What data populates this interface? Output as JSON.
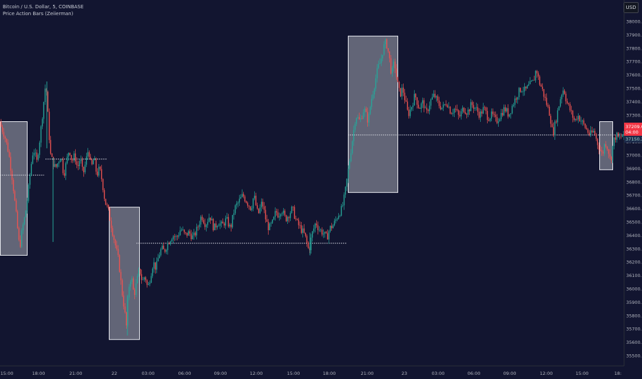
{
  "header": {
    "symbol_line": "Bitcoin / U.S. Dollar, 5, COINBASE",
    "indicator_line": "Price Action Bars (Zeiierman)",
    "currency_button": "USD"
  },
  "price_badges": {
    "last_price": "37209.02",
    "countdown": "04:00",
    "line_price": "37150.22"
  },
  "colors": {
    "background": "#121530",
    "bull": "#26a69a",
    "bear": "#ef5350",
    "box_fill": "#d1d4dc",
    "last_badge": "#f23645"
  },
  "chart_data": {
    "type": "candlestick",
    "title": "Bitcoin / U.S. Dollar, 5, COINBASE",
    "y_range": [
      35450,
      38100
    ],
    "y_ticks": [
      35500,
      35600,
      35700,
      35800,
      35900,
      36000,
      36100,
      36200,
      36300,
      36400,
      36500,
      36600,
      36700,
      36800,
      36900,
      37000,
      37100,
      37200,
      37300,
      37400,
      37500,
      37600,
      37700,
      37800,
      37900,
      38000
    ],
    "x_ticks": [
      "15:00",
      "18:00",
      "21:00",
      "22",
      "03:00",
      "06:00",
      "09:00",
      "12:00",
      "15:00",
      "18:00",
      "21:00",
      "23",
      "03:00",
      "06:00",
      "09:00",
      "12:00",
      "15:00",
      "18:"
    ],
    "price_path": [
      [
        0,
        37250
      ],
      [
        8,
        37150
      ],
      [
        14,
        37020
      ],
      [
        20,
        36800
      ],
      [
        25,
        36550
      ],
      [
        30,
        36300
      ],
      [
        34,
        36450
      ],
      [
        38,
        36550
      ],
      [
        42,
        36700
      ],
      [
        46,
        36900
      ],
      [
        50,
        37050
      ],
      [
        55,
        36950
      ],
      [
        60,
        37150
      ],
      [
        63,
        37300
      ],
      [
        66,
        37450
      ],
      [
        68,
        37550
      ],
      [
        70,
        37400
      ],
      [
        72,
        37200
      ],
      [
        75,
        37000
      ],
      [
        78,
        36950
      ],
      [
        82,
        36900
      ],
      [
        86,
        36950
      ],
      [
        90,
        37000
      ],
      [
        94,
        36850
      ],
      [
        98,
        36950
      ],
      [
        102,
        37050
      ],
      [
        106,
        36950
      ],
      [
        110,
        37000
      ],
      [
        114,
        36900
      ],
      [
        118,
        36980
      ],
      [
        122,
        36850
      ],
      [
        126,
        36950
      ],
      [
        130,
        37050
      ],
      [
        134,
        36900
      ],
      [
        138,
        36980
      ],
      [
        142,
        36850
      ],
      [
        146,
        36900
      ],
      [
        150,
        36800
      ],
      [
        154,
        36650
      ],
      [
        158,
        36600
      ],
      [
        162,
        36500
      ],
      [
        166,
        36400
      ],
      [
        170,
        36300
      ],
      [
        174,
        36200
      ],
      [
        178,
        36000
      ],
      [
        182,
        35850
      ],
      [
        185,
        35720
      ],
      [
        188,
        36000
      ],
      [
        192,
        36100
      ],
      [
        196,
        35950
      ],
      [
        200,
        36050
      ],
      [
        204,
        36150
      ],
      [
        208,
        36050
      ],
      [
        212,
        36100
      ],
      [
        216,
        36000
      ],
      [
        220,
        36100
      ],
      [
        224,
        36200
      ],
      [
        228,
        36150
      ],
      [
        232,
        36250
      ],
      [
        236,
        36300
      ],
      [
        240,
        36280
      ],
      [
        246,
        36350
      ],
      [
        252,
        36400
      ],
      [
        258,
        36380
      ],
      [
        264,
        36450
      ],
      [
        270,
        36400
      ],
      [
        276,
        36420
      ],
      [
        282,
        36380
      ],
      [
        288,
        36450
      ],
      [
        294,
        36550
      ],
      [
        300,
        36480
      ],
      [
        306,
        36550
      ],
      [
        312,
        36450
      ],
      [
        318,
        36500
      ],
      [
        324,
        36470
      ],
      [
        330,
        36520
      ],
      [
        336,
        36450
      ],
      [
        342,
        36600
      ],
      [
        348,
        36650
      ],
      [
        354,
        36700
      ],
      [
        360,
        36650
      ],
      [
        366,
        36600
      ],
      [
        370,
        36700
      ],
      [
        376,
        36550
      ],
      [
        382,
        36650
      ],
      [
        388,
        36500
      ],
      [
        392,
        36450
      ],
      [
        398,
        36500
      ],
      [
        402,
        36580
      ],
      [
        406,
        36550
      ],
      [
        410,
        36600
      ],
      [
        416,
        36520
      ],
      [
        420,
        36550
      ],
      [
        426,
        36600
      ],
      [
        432,
        36500
      ],
      [
        438,
        36450
      ],
      [
        444,
        36400
      ],
      [
        450,
        36280
      ],
      [
        454,
        36400
      ],
      [
        460,
        36500
      ],
      [
        464,
        36450
      ],
      [
        470,
        36420
      ],
      [
        476,
        36380
      ],
      [
        480,
        36450
      ],
      [
        486,
        36480
      ],
      [
        492,
        36550
      ],
      [
        498,
        36600
      ],
      [
        502,
        36700
      ],
      [
        506,
        36850
      ],
      [
        510,
        37000
      ],
      [
        514,
        37150
      ],
      [
        518,
        37300
      ],
      [
        524,
        37250
      ],
      [
        530,
        37350
      ],
      [
        536,
        37250
      ],
      [
        540,
        37400
      ],
      [
        546,
        37550
      ],
      [
        550,
        37650
      ],
      [
        554,
        37700
      ],
      [
        558,
        37800
      ],
      [
        562,
        37850
      ],
      [
        566,
        37750
      ],
      [
        570,
        37600
      ],
      [
        574,
        37700
      ],
      [
        578,
        37550
      ],
      [
        582,
        37450
      ],
      [
        586,
        37500
      ],
      [
        590,
        37400
      ],
      [
        594,
        37300
      ],
      [
        598,
        37350
      ],
      [
        604,
        37450
      ],
      [
        610,
        37350
      ],
      [
        616,
        37400
      ],
      [
        620,
        37300
      ],
      [
        626,
        37400
      ],
      [
        632,
        37450
      ],
      [
        638,
        37380
      ],
      [
        644,
        37350
      ],
      [
        650,
        37400
      ],
      [
        656,
        37320
      ],
      [
        662,
        37350
      ],
      [
        668,
        37280
      ],
      [
        674,
        37350
      ],
      [
        680,
        37320
      ],
      [
        686,
        37380
      ],
      [
        692,
        37350
      ],
      [
        698,
        37300
      ],
      [
        704,
        37350
      ],
      [
        710,
        37280
      ],
      [
        716,
        37300
      ],
      [
        722,
        37250
      ],
      [
        728,
        37300
      ],
      [
        734,
        37350
      ],
      [
        740,
        37300
      ],
      [
        746,
        37380
      ],
      [
        752,
        37450
      ],
      [
        758,
        37500
      ],
      [
        764,
        37480
      ],
      [
        770,
        37520
      ],
      [
        776,
        37550
      ],
      [
        780,
        37650
      ],
      [
        784,
        37550
      ],
      [
        788,
        37500
      ],
      [
        794,
        37400
      ],
      [
        800,
        37300
      ],
      [
        804,
        37150
      ],
      [
        808,
        37250
      ],
      [
        812,
        37350
      ],
      [
        816,
        37450
      ],
      [
        820,
        37500
      ],
      [
        824,
        37400
      ],
      [
        828,
        37350
      ],
      [
        832,
        37300
      ],
      [
        836,
        37250
      ],
      [
        840,
        37300
      ],
      [
        846,
        37250
      ],
      [
        852,
        37200
      ],
      [
        858,
        37150
      ],
      [
        864,
        37180
      ],
      [
        868,
        37100
      ],
      [
        872,
        37050
      ],
      [
        876,
        37000
      ],
      [
        880,
        37100
      ],
      [
        884,
        37050
      ],
      [
        888,
        36950
      ],
      [
        892,
        37100
      ],
      [
        896,
        37150
      ],
      [
        900,
        37120
      ],
      [
        906,
        37150
      ]
    ],
    "zones": [
      {
        "x1": 0,
        "x2": 39,
        "y_high": 37250,
        "y_low": 36250
      },
      {
        "x1": 158,
        "x2": 202,
        "y_high": 36610,
        "y_low": 35620
      },
      {
        "x1": 505,
        "x2": 577,
        "y_high": 37890,
        "y_low": 36720
      },
      {
        "x1": 870,
        "x2": 889,
        "y_high": 37250,
        "y_low": 36890
      }
    ],
    "levels": [
      {
        "x1": 0,
        "x2": 64,
        "price": 36850
      },
      {
        "x1": 66,
        "x2": 156,
        "price": 36970
      },
      {
        "x1": 198,
        "x2": 504,
        "price": 36340
      },
      {
        "x1": 505,
        "x2": 906,
        "price": 37150
      }
    ],
    "spikes": [
      {
        "x": 68,
        "high": 37550,
        "low": 37050
      },
      {
        "x": 77,
        "high": 36980,
        "low": 36350
      },
      {
        "x": 185,
        "high": 35950,
        "low": 35650
      },
      {
        "x": 450,
        "high": 36420,
        "low": 36250
      }
    ]
  }
}
